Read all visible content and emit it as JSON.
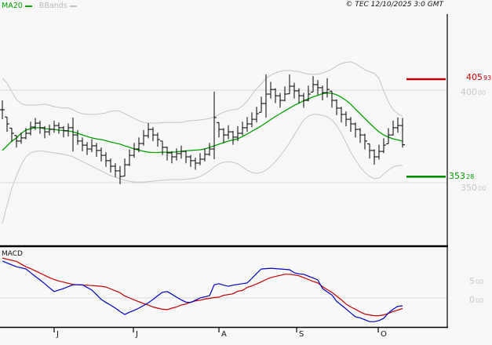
{
  "labels": {
    "ma20": "MA20",
    "bbands": "BBands",
    "copyright": "© TEC 12/10/2025 3:0 GMT",
    "macd": "MACD",
    "last_price": {
      "main": "405",
      "sup": "93"
    },
    "alert_price": {
      "main": "353",
      "sup": "28"
    },
    "axis_400": {
      "main": "400",
      "sup": "00"
    },
    "axis_350": {
      "main": "350",
      "sup": "00"
    },
    "macd_5": {
      "main": "5",
      "sup": "00"
    },
    "macd_0": {
      "main": "0",
      "sup": "00"
    }
  },
  "colors": {
    "background": "#f8f8f8",
    "grid": "#d9d9d9",
    "band": "#c4c4c4",
    "ma20": "#00a000",
    "bar": "#000000",
    "marker_high": "#bb0000",
    "marker_low": "#008f00",
    "label_red": "#cc0000",
    "label_green": "#009b00",
    "label_gray": "#c6c6c6",
    "macd_line": "#0000bf",
    "macd_signal": "#c00000",
    "axis": "#000000"
  },
  "chart_data": {
    "type": "ohlc",
    "title": "",
    "legend": [
      "MA20",
      "BBands",
      "MACD"
    ],
    "x_axis": {
      "tick_labels": [
        "J",
        "J",
        "A",
        "S",
        "O"
      ],
      "tick_x": [
        69,
        170,
        279,
        378,
        482
      ]
    },
    "price_panel": {
      "ylim": [
        316,
        441
      ],
      "gridlines": [
        400,
        350
      ],
      "grid_label_values": [
        "400.00",
        "350.00"
      ],
      "marker_high": 405.93,
      "marker_low": 353.28,
      "bars_hlc": [
        [
          394.5,
          384.3,
          389.4
        ],
        [
          385.5,
          377.5,
          381.8
        ],
        [
          379.5,
          372.0,
          376.7
        ],
        [
          375.5,
          369.0,
          372.5
        ],
        [
          377.0,
          371.0,
          374.2
        ],
        [
          379.5,
          373.5,
          376.7
        ],
        [
          383.0,
          375.5,
          380.1
        ],
        [
          385.0,
          378.5,
          382.2
        ],
        [
          383.5,
          376.5,
          379.7
        ],
        [
          380.5,
          374.0,
          377.5
        ],
        [
          381.5,
          375.5,
          378.8
        ],
        [
          383.5,
          377.0,
          380.9
        ],
        [
          382.5,
          376.5,
          379.7
        ],
        [
          380.5,
          374.5,
          378.0
        ],
        [
          382.0,
          375.0,
          379.7
        ],
        [
          385.2,
          366.9,
          375.8
        ],
        [
          378.5,
          370.5,
          372.5
        ],
        [
          374.5,
          367.0,
          370.3
        ],
        [
          372.0,
          365.0,
          368.2
        ],
        [
          373.5,
          366.5,
          369.9
        ],
        [
          371.5,
          364.0,
          367.4
        ],
        [
          369.0,
          361.5,
          364.8
        ],
        [
          366.5,
          358.5,
          361.9
        ],
        [
          363.0,
          355.5,
          358.9
        ],
        [
          360.5,
          353.0,
          356.4
        ],
        [
          359.0,
          349.2,
          353.4
        ],
        [
          363.0,
          353.5,
          359.7
        ],
        [
          368.0,
          359.0,
          364.8
        ],
        [
          371.5,
          363.5,
          368.2
        ],
        [
          374.5,
          366.5,
          371.2
        ],
        [
          378.5,
          370.0,
          375.4
        ],
        [
          382.2,
          374.0,
          378.8
        ],
        [
          380.0,
          372.5,
          375.8
        ],
        [
          377.0,
          369.5,
          373.3
        ],
        [
          372.5,
          365.0,
          369.1
        ],
        [
          369.5,
          362.0,
          366.1
        ],
        [
          367.0,
          360.5,
          364.0
        ],
        [
          368.5,
          362.0,
          365.7
        ],
        [
          370.0,
          363.0,
          366.9
        ],
        [
          367.5,
          360.5,
          364.0
        ],
        [
          365.0,
          358.5,
          361.9
        ],
        [
          363.5,
          357.0,
          360.6
        ],
        [
          366.0,
          359.5,
          362.7
        ],
        [
          368.5,
          361.5,
          365.3
        ],
        [
          371.5,
          364.5,
          368.2
        ],
        [
          399.2,
          362.7,
          385.2
        ],
        [
          382.5,
          374.5,
          378.8
        ],
        [
          379.5,
          371.5,
          375.8
        ],
        [
          381.0,
          373.5,
          377.5
        ],
        [
          378.0,
          370.5,
          374.6
        ],
        [
          380.5,
          372.5,
          376.7
        ],
        [
          383.0,
          375.5,
          379.7
        ],
        [
          385.5,
          377.5,
          381.8
        ],
        [
          388.0,
          380.0,
          384.3
        ],
        [
          391.0,
          382.5,
          387.3
        ],
        [
          396.5,
          388.0,
          392.8
        ],
        [
          408.5,
          385.2,
          397.9
        ],
        [
          404.5,
          395.5,
          400.4
        ],
        [
          401.0,
          393.0,
          397.0
        ],
        [
          398.5,
          390.5,
          394.5
        ],
        [
          402.0,
          394.0,
          397.9
        ],
        [
          408.5,
          398.0,
          402.1
        ],
        [
          404.0,
          395.5,
          399.6
        ],
        [
          401.0,
          393.0,
          397.0
        ],
        [
          398.5,
          390.5,
          394.5
        ],
        [
          402.5,
          394.0,
          397.9
        ],
        [
          407.6,
          399.0,
          403.0
        ],
        [
          405.5,
          397.5,
          401.3
        ],
        [
          402.5,
          394.5,
          398.7
        ],
        [
          406.5,
          396.0,
          400.4
        ],
        [
          399.5,
          390.5,
          394.5
        ],
        [
          395.0,
          386.5,
          390.3
        ],
        [
          391.0,
          382.5,
          386.9
        ],
        [
          388.5,
          380.5,
          384.3
        ],
        [
          385.5,
          377.5,
          381.8
        ],
        [
          382.5,
          374.5,
          378.8
        ],
        [
          379.5,
          371.5,
          375.8
        ],
        [
          376.5,
          368.0,
          372.5
        ],
        [
          371.0,
          363.0,
          367.4
        ],
        [
          368.0,
          359.7,
          364.0
        ],
        [
          370.5,
          362.5,
          366.9
        ],
        [
          374.0,
          366.0,
          370.3
        ],
        [
          379.5,
          371.0,
          375.8
        ],
        [
          383.5,
          375.5,
          379.7
        ],
        [
          385.2,
          377.0,
          380.9
        ],
        [
          385.0,
          369.0,
          370.5
        ]
      ],
      "ma20": [
        367.4,
        369.9,
        372.5,
        374.2,
        376.7,
        378.4,
        379.2,
        379.7,
        379.7,
        379.2,
        379.0,
        378.8,
        378.4,
        378.2,
        378.0,
        377.5,
        376.7,
        375.8,
        375.0,
        374.2,
        373.7,
        373.3,
        372.7,
        372.0,
        371.4,
        370.8,
        369.9,
        369.1,
        368.2,
        367.6,
        367.0,
        366.5,
        366.3,
        366.3,
        366.5,
        366.5,
        366.5,
        366.7,
        367.0,
        367.2,
        367.4,
        367.6,
        367.8,
        368.2,
        369.1,
        369.9,
        370.8,
        371.6,
        372.5,
        373.1,
        373.7,
        375.0,
        376.3,
        377.8,
        379.2,
        380.7,
        382.4,
        384.1,
        385.8,
        387.3,
        388.8,
        390.3,
        391.8,
        393.0,
        394.3,
        395.3,
        396.4,
        397.2,
        398.1,
        398.5,
        398.3,
        397.5,
        396.2,
        394.5,
        392.4,
        389.8,
        387.3,
        384.7,
        382.2,
        379.7,
        377.5,
        375.8,
        374.6,
        373.7,
        373.1,
        372.5
      ],
      "bb_upper": [
        406.4,
        403.8,
        399.2,
        394.9,
        392.8,
        391.9,
        391.9,
        391.9,
        392.2,
        392.4,
        391.9,
        391.1,
        390.7,
        390.3,
        390.5,
        389.4,
        388.1,
        387.3,
        386.9,
        386.9,
        386.9,
        387.3,
        387.7,
        388.6,
        389.0,
        388.6,
        387.3,
        386.0,
        384.7,
        383.5,
        382.6,
        382.2,
        382.2,
        382.2,
        382.4,
        382.6,
        382.6,
        382.6,
        382.6,
        383.1,
        383.5,
        383.7,
        383.9,
        384.3,
        384.7,
        385.6,
        386.9,
        388.1,
        389.0,
        389.4,
        389.8,
        391.5,
        394.1,
        397.5,
        400.8,
        403.4,
        406.4,
        408.1,
        409.3,
        410.2,
        410.6,
        410.6,
        410.4,
        410.0,
        409.3,
        408.7,
        408.5,
        408.7,
        409.3,
        410.2,
        411.4,
        413.1,
        414.4,
        415.0,
        415.3,
        414.4,
        412.7,
        411.0,
        410.0,
        409.1,
        406.4,
        399.6,
        393.6,
        389.4,
        387.3,
        386.0
      ],
      "bb_lower": [
        328.0,
        337.7,
        347.0,
        353.8,
        359.7,
        364.0,
        366.1,
        366.9,
        367.2,
        366.9,
        366.5,
        366.1,
        365.7,
        365.3,
        364.8,
        364.0,
        362.7,
        361.4,
        360.2,
        358.9,
        357.6,
        356.4,
        355.1,
        353.8,
        353.0,
        352.1,
        351.3,
        350.8,
        350.4,
        350.4,
        350.4,
        350.6,
        350.8,
        351.1,
        351.3,
        351.5,
        351.7,
        351.7,
        351.7,
        351.9,
        352.1,
        352.5,
        353.4,
        354.7,
        356.4,
        358.5,
        360.2,
        361.0,
        361.4,
        361.0,
        360.2,
        358.5,
        356.8,
        355.5,
        355.1,
        355.5,
        356.8,
        358.9,
        361.4,
        364.4,
        367.8,
        371.6,
        375.8,
        380.1,
        383.9,
        386.0,
        386.9,
        386.9,
        386.4,
        385.6,
        383.9,
        380.9,
        376.7,
        371.6,
        366.5,
        362.3,
        358.5,
        355.5,
        353.4,
        352.1,
        352.5,
        354.7,
        356.8,
        358.5,
        359.3,
        359.3
      ]
    },
    "macd_panel": {
      "ylim": [
        -7.7,
        13.5
      ],
      "gridlines": [
        0
      ],
      "axis_values": [
        5,
        0
      ],
      "grid_label_values": [
        "5.00",
        "0.00"
      ],
      "macd": [
        9.8,
        9.3,
        8.8,
        8.3,
        8.0,
        7.7,
        6.7,
        5.7,
        4.8,
        3.8,
        2.7,
        1.7,
        2.1,
        2.5,
        3.0,
        3.5,
        3.5,
        3.5,
        2.8,
        2.1,
        0.9,
        -0.4,
        -1.2,
        -1.9,
        -2.7,
        -3.6,
        -4.4,
        -3.8,
        -3.3,
        -2.7,
        -2.0,
        -1.3,
        -0.4,
        0.6,
        1.5,
        1.7,
        1.0,
        0.2,
        -0.5,
        -1.1,
        -1.2,
        -0.6,
        0.0,
        0.3,
        0.6,
        3.5,
        3.8,
        3.4,
        3.1,
        3.4,
        3.6,
        3.8,
        4.0,
        5.2,
        6.5,
        7.7,
        7.8,
        7.9,
        7.8,
        7.7,
        7.6,
        7.5,
        6.7,
        6.4,
        6.3,
        5.8,
        5.3,
        4.8,
        2.5,
        1.6,
        0.8,
        -0.9,
        -1.9,
        -2.9,
        -4.0,
        -5.0,
        -5.3,
        -5.8,
        -6.3,
        -6.3,
        -6.0,
        -5.4,
        -4.0,
        -3.0,
        -2.2,
        -2.1
      ],
      "signal": [
        10.6,
        10.3,
        10.0,
        9.7,
        9.0,
        8.3,
        7.8,
        7.2,
        6.6,
        6.0,
        5.4,
        4.9,
        4.5,
        4.2,
        3.9,
        3.6,
        3.5,
        3.4,
        3.4,
        3.3,
        3.2,
        3.1,
        2.9,
        2.4,
        1.9,
        1.4,
        0.5,
        0.0,
        -0.5,
        -1.0,
        -1.5,
        -1.9,
        -2.4,
        -2.7,
        -3.0,
        -3.1,
        -2.7,
        -2.4,
        -1.9,
        -1.6,
        -1.1,
        -0.8,
        -0.6,
        -0.3,
        -0.1,
        0.1,
        0.2,
        0.7,
        0.9,
        1.1,
        1.8,
        2.0,
        2.8,
        3.2,
        3.7,
        4.3,
        4.9,
        5.4,
        5.7,
        6.0,
        6.3,
        6.3,
        6.1,
        5.9,
        5.4,
        4.9,
        4.4,
        4.0,
        3.0,
        2.2,
        1.5,
        0.5,
        -0.5,
        -1.6,
        -2.4,
        -3.0,
        -3.7,
        -4.3,
        -4.5,
        -4.7,
        -4.7,
        -4.5,
        -4.1,
        -3.6,
        -3.2,
        -2.8
      ]
    }
  }
}
